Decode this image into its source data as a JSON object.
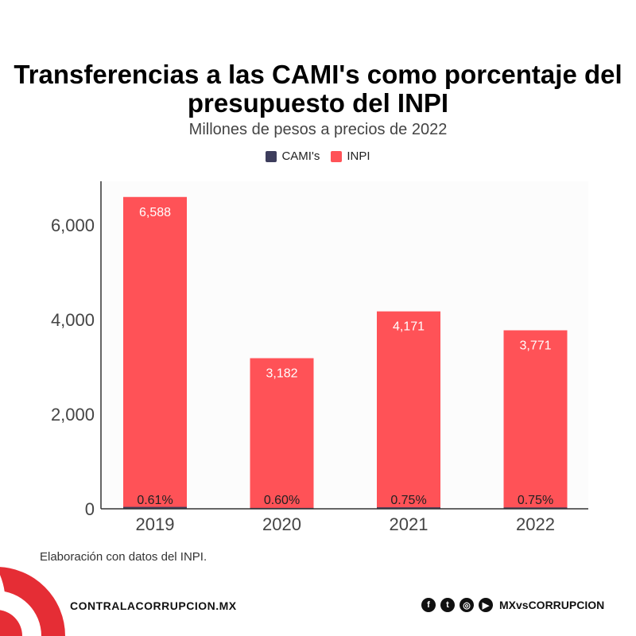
{
  "chart_data": {
    "type": "bar",
    "title": "Transferencias a las CAMI's como porcentaje del presupuesto del INPI",
    "subtitle": "Millones de pesos a precios de 2022",
    "categories": [
      "2019",
      "2020",
      "2021",
      "2022"
    ],
    "series": [
      {
        "name": "CAMI's",
        "color": "#3d3d5c",
        "values": [
          40,
          19,
          31,
          28
        ],
        "labels": [
          "0.61%",
          "0.60%",
          "0.75%",
          "0.75%"
        ]
      },
      {
        "name": "INPI",
        "color": "#ff5257",
        "values": [
          6588,
          3182,
          4171,
          3771
        ],
        "labels": [
          "6,588",
          "3,182",
          "4,171",
          "3,771"
        ]
      }
    ],
    "yticks": [
      0,
      2000,
      4000,
      6000
    ],
    "ytick_labels": [
      "0",
      "2,000",
      "4,000",
      "6,000"
    ],
    "ylim": [
      0,
      6920
    ],
    "xlabel": "",
    "ylabel": "",
    "grid": false,
    "legend": "top-center"
  },
  "footer": {
    "source": "Elaboración con datos del INPI.",
    "site": "CONTRALACORRUPCION.MX",
    "handle": "MXvsCORRUPCION",
    "social_icons": [
      "facebook-icon",
      "twitter-icon",
      "instagram-icon",
      "youtube-icon"
    ],
    "brand_color": "#e52d35"
  }
}
